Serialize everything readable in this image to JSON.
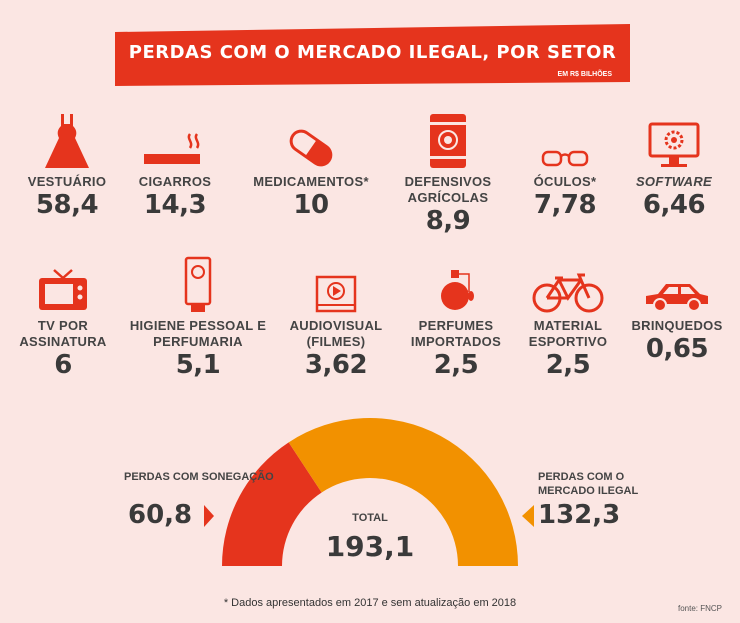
{
  "header": {
    "title": "PERDAS COM O MERCADO ILEGAL, POR SETOR",
    "unit": "EM R$ BILHÕES"
  },
  "sectors": [
    {
      "name": "VESTUÁRIO",
      "value": "58,4",
      "icon": "dress-icon"
    },
    {
      "name": "CIGARROS",
      "value": "14,3",
      "icon": "cigarette-icon"
    },
    {
      "name": "MEDICAMENTOS*",
      "value": "10",
      "icon": "pill-icon"
    },
    {
      "name": "DEFENSIVOS AGRÍCOLAS",
      "value": "8,9",
      "icon": "barrel-icon"
    },
    {
      "name": "ÓCULOS*",
      "value": "7,78",
      "icon": "glasses-icon"
    },
    {
      "name": "SOFTWARE",
      "value": "6,46",
      "icon": "monitor-gear-icon"
    },
    {
      "name": "TV POR ASSINATURA",
      "value": "6",
      "icon": "tv-icon"
    },
    {
      "name": "HIGIENE PESSOAL E PERFUMARIA",
      "value": "5,1",
      "icon": "lotion-tube-icon"
    },
    {
      "name": "AUDIOVISUAL (FILMES)",
      "value": "3,62",
      "icon": "video-player-icon"
    },
    {
      "name": "PERFUMES IMPORTADOS",
      "value": "2,5",
      "icon": "perfume-bottle-icon"
    },
    {
      "name": "MATERIAL ESPORTIVO",
      "value": "2,5",
      "icon": "bicycle-icon"
    },
    {
      "name": "BRINQUEDOS",
      "value": "0,65",
      "icon": "toy-car-icon"
    }
  ],
  "gauge": {
    "left_label": "PERDAS COM SONEGAÇÃO",
    "left_value": "60,8",
    "right_label": "PERDAS COM O MERCADO ILEGAL",
    "right_value": "132,3",
    "total_label": "TOTAL",
    "total_value": "193,1"
  },
  "footnote": "* Dados apresentados em 2017 e sem atualização em 2018",
  "source": "fonte: FNCP",
  "colors": {
    "red": "#e5341d",
    "orange": "#f29100",
    "background": "#fbe6e3",
    "text": "#3a3a3a"
  },
  "chart_data": {
    "type": "pie",
    "categories": [
      "PERDAS COM SONEGAÇÃO",
      "PERDAS COM O MERCADO ILEGAL"
    ],
    "values": [
      60.8,
      132.3
    ],
    "total": 193.1,
    "layout": "half-donut"
  }
}
